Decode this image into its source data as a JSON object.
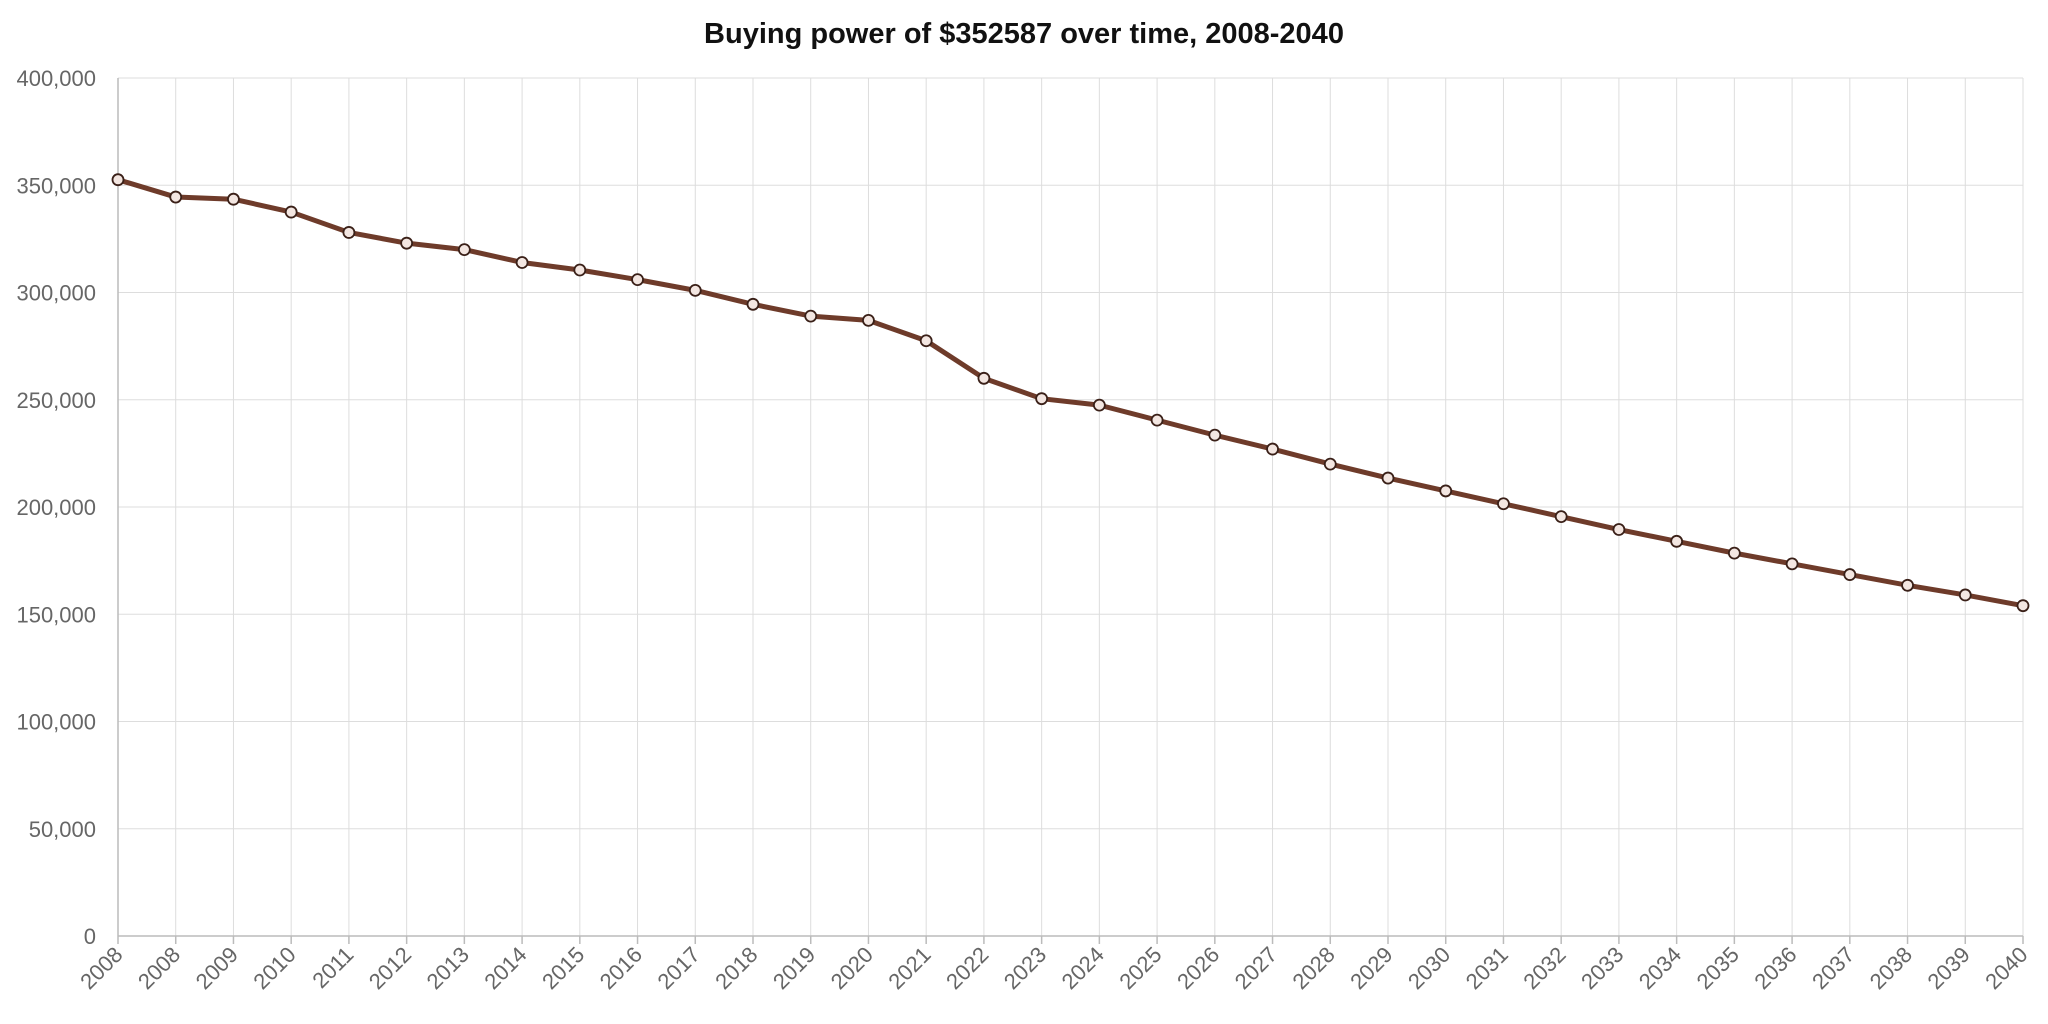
{
  "chart_data": {
    "type": "line",
    "title": "Buying power of $352587 over time, 2008-2040",
    "xlabel": "",
    "ylabel": "",
    "ylim": [
      0,
      400000
    ],
    "y_ticks": [
      0,
      50000,
      100000,
      150000,
      200000,
      250000,
      300000,
      350000,
      400000
    ],
    "y_tick_labels": [
      "0",
      "50,000",
      "100,000",
      "150,000",
      "200,000",
      "250,000",
      "300,000",
      "350,000",
      "400,000"
    ],
    "categories": [
      "2008",
      "2008",
      "2009",
      "2010",
      "2011",
      "2012",
      "2013",
      "2014",
      "2015",
      "2016",
      "2017",
      "2018",
      "2019",
      "2020",
      "2021",
      "2022",
      "2023",
      "2024",
      "2025",
      "2026",
      "2027",
      "2028",
      "2029",
      "2030",
      "2031",
      "2032",
      "2033",
      "2034",
      "2035",
      "2036",
      "2037",
      "2038",
      "2039",
      "2040"
    ],
    "grid": true,
    "series": [
      {
        "name": "Buying power",
        "color": "#6e3b2a",
        "values": [
          352587,
          344500,
          343500,
          337500,
          328000,
          323000,
          320000,
          314000,
          310500,
          306000,
          301000,
          294500,
          289000,
          287000,
          277500,
          260000,
          250500,
          247500,
          240500,
          233500,
          227000,
          220000,
          213500,
          207500,
          201500,
          195500,
          189500,
          184000,
          178500,
          173500,
          168500,
          163500,
          159000,
          154000
        ]
      }
    ]
  }
}
